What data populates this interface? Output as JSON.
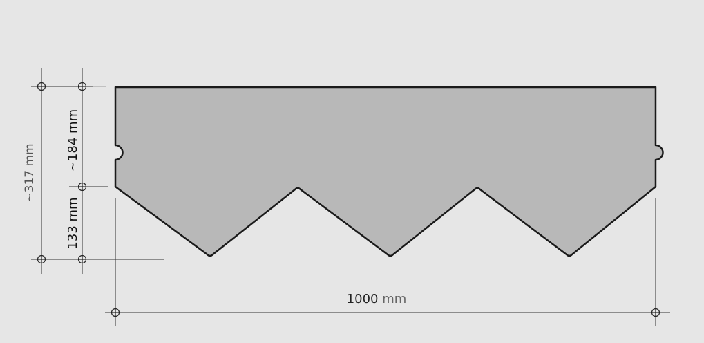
{
  "dimensions": {
    "total_height": {
      "value": "~317",
      "unit": "mm"
    },
    "upper_height": {
      "value": "~184",
      "unit": "mm"
    },
    "tab_height": {
      "value": "133",
      "unit": "mm"
    },
    "width": {
      "value": "1000",
      "unit": "mm"
    }
  },
  "colors": {
    "background": "#e6e6e6",
    "shingle_fill": "#b8b8b8",
    "outline": "#1a1a1a",
    "dim_line": "#333333"
  }
}
